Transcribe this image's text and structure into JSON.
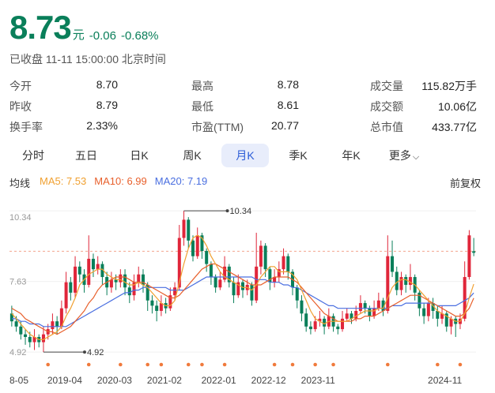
{
  "quote": {
    "price": "8.73",
    "unit": "元",
    "change": "-0.06",
    "change_pct": "-0.68%",
    "status": "已收盘 11-11 15:00:00 北京时间",
    "color": "#0a7f5a"
  },
  "stats": [
    [
      {
        "label": "今开",
        "value": "8.70"
      },
      {
        "label": "最高",
        "value": "8.78"
      },
      {
        "label": "成交量",
        "value": "115.82万手"
      }
    ],
    [
      {
        "label": "昨收",
        "value": "8.79"
      },
      {
        "label": "最低",
        "value": "8.61"
      },
      {
        "label": "成交额",
        "value": "10.06亿"
      }
    ],
    [
      {
        "label": "换手率",
        "value": "2.33%"
      },
      {
        "label": "市盈(TTM)",
        "value": "20.77"
      },
      {
        "label": "总市值",
        "value": "433.77亿"
      }
    ]
  ],
  "tabs": [
    "分时",
    "五日",
    "日K",
    "周K",
    "月K",
    "季K",
    "年K",
    "更多"
  ],
  "active_tab": "月K",
  "ma": {
    "label": "均线",
    "ma5": "MA5: 7.53",
    "ma10": "MA10: 6.99",
    "ma20": "MA20: 7.19",
    "ma5_color": "#f0a030",
    "ma10_color": "#e8602c",
    "ma20_color": "#4a6fe0",
    "adjust": "前复权"
  },
  "chart_data": {
    "type": "candlestick",
    "ylim": [
      4.5,
      10.8
    ],
    "y_ticks": [
      "10.34",
      "7.63",
      "4.92"
    ],
    "x_ticks": [
      "8-05",
      "2019-04",
      "2020-03",
      "2021-02",
      "2022-01",
      "2022-12",
      "2023-11",
      "2024-11"
    ],
    "max_label": "10.34",
    "min_label": "4.92",
    "ref_line": 8.79,
    "up_color": "#e0263a",
    "down_color": "#0a7f5a",
    "candles": [
      [
        6.4,
        6.1,
        6.7,
        5.9
      ],
      [
        6.1,
        5.9,
        6.3,
        5.7
      ],
      [
        5.9,
        5.6,
        6.1,
        5.4
      ],
      [
        5.6,
        5.5,
        5.8,
        5.2
      ],
      [
        5.5,
        5.3,
        5.7,
        5.1
      ],
      [
        5.3,
        5.5,
        5.8,
        5.0
      ],
      [
        5.5,
        5.3,
        5.6,
        5.1
      ],
      [
        5.3,
        5.6,
        5.9,
        4.92
      ],
      [
        5.6,
        5.8,
        6.0,
        5.4
      ],
      [
        5.8,
        6.1,
        6.4,
        5.6
      ],
      [
        6.1,
        5.9,
        6.3,
        5.6
      ],
      [
        5.9,
        6.6,
        6.9,
        5.8
      ],
      [
        6.6,
        7.6,
        8.0,
        6.4
      ],
      [
        7.6,
        7.2,
        7.8,
        6.9
      ],
      [
        7.2,
        8.2,
        8.6,
        7.0
      ],
      [
        8.2,
        7.9,
        8.4,
        7.6
      ],
      [
        7.9,
        7.5,
        8.1,
        7.2
      ],
      [
        7.5,
        8.5,
        9.4,
        7.4
      ],
      [
        8.5,
        8.1,
        8.7,
        7.8
      ],
      [
        8.1,
        8.3,
        8.6,
        7.9
      ],
      [
        8.3,
        7.8,
        8.4,
        7.5
      ],
      [
        7.8,
        7.4,
        8.0,
        7.1
      ],
      [
        7.4,
        7.7,
        8.0,
        7.2
      ],
      [
        7.7,
        7.6,
        7.9,
        7.3
      ],
      [
        7.6,
        7.9,
        8.1,
        7.4
      ],
      [
        7.9,
        7.4,
        8.1,
        7.1
      ],
      [
        7.4,
        7.1,
        7.6,
        6.8
      ],
      [
        7.1,
        7.6,
        7.9,
        6.9
      ],
      [
        7.6,
        7.9,
        8.2,
        7.4
      ],
      [
        7.9,
        7.5,
        8.1,
        7.2
      ],
      [
        7.5,
        6.9,
        7.6,
        6.5
      ],
      [
        6.9,
        6.7,
        7.1,
        6.4
      ],
      [
        6.7,
        6.5,
        6.9,
        6.1
      ],
      [
        6.5,
        6.8,
        7.1,
        6.3
      ],
      [
        6.8,
        6.6,
        7.0,
        6.4
      ],
      [
        6.6,
        7.1,
        7.4,
        6.5
      ],
      [
        7.1,
        7.4,
        7.6,
        6.9
      ],
      [
        7.4,
        9.3,
        9.8,
        7.3
      ],
      [
        9.3,
        10.0,
        10.34,
        9.0
      ],
      [
        10.0,
        9.2,
        10.1,
        8.9
      ],
      [
        9.2,
        8.6,
        9.4,
        8.4
      ],
      [
        8.6,
        9.4,
        9.7,
        8.5
      ],
      [
        9.4,
        8.8,
        9.5,
        8.5
      ],
      [
        8.8,
        8.3,
        8.9,
        8.0
      ],
      [
        8.3,
        7.8,
        8.4,
        7.5
      ],
      [
        7.8,
        7.4,
        7.9,
        7.2
      ],
      [
        7.4,
        7.7,
        8.0,
        7.3
      ],
      [
        7.7,
        8.2,
        8.6,
        7.6
      ],
      [
        8.2,
        7.6,
        8.3,
        7.4
      ],
      [
        7.6,
        7.1,
        7.8,
        6.8
      ],
      [
        7.1,
        7.6,
        7.9,
        7.0
      ],
      [
        7.6,
        7.3,
        7.7,
        7.0
      ],
      [
        7.3,
        7.5,
        7.7,
        7.1
      ],
      [
        7.5,
        6.9,
        7.6,
        6.7
      ],
      [
        6.9,
        8.2,
        9.5,
        6.8
      ],
      [
        8.2,
        9.0,
        9.2,
        7.9
      ],
      [
        9.0,
        8.1,
        9.1,
        7.8
      ],
      [
        8.1,
        7.6,
        8.2,
        7.3
      ],
      [
        7.6,
        7.8,
        8.1,
        7.4
      ],
      [
        7.8,
        8.1,
        8.4,
        7.6
      ],
      [
        8.1,
        8.6,
        8.9,
        7.9
      ],
      [
        8.6,
        8.0,
        8.7,
        7.7
      ],
      [
        8.0,
        7.4,
        8.1,
        7.1
      ],
      [
        7.4,
        6.9,
        7.5,
        6.6
      ],
      [
        6.9,
        6.4,
        7.1,
        6.1
      ],
      [
        6.4,
        5.9,
        6.6,
        5.7
      ],
      [
        5.9,
        5.8,
        6.1,
        5.6
      ],
      [
        5.8,
        6.1,
        6.3,
        5.7
      ],
      [
        6.1,
        6.2,
        6.5,
        5.9
      ],
      [
        6.2,
        5.9,
        6.3,
        5.6
      ],
      [
        5.9,
        6.3,
        6.6,
        5.8
      ],
      [
        6.3,
        5.9,
        6.4,
        5.7
      ],
      [
        5.9,
        5.8,
        6.0,
        5.6
      ],
      [
        5.8,
        6.2,
        6.5,
        5.7
      ],
      [
        6.2,
        6.4,
        6.6,
        6.1
      ],
      [
        6.4,
        6.2,
        6.5,
        6.0
      ],
      [
        6.2,
        6.5,
        6.7,
        6.1
      ],
      [
        6.5,
        6.8,
        7.1,
        6.4
      ],
      [
        6.8,
        6.6,
        6.9,
        6.4
      ],
      [
        6.6,
        6.3,
        6.7,
        6.1
      ],
      [
        6.3,
        6.6,
        6.9,
        6.2
      ],
      [
        6.6,
        6.9,
        7.2,
        6.5
      ],
      [
        6.9,
        6.5,
        7.0,
        6.3
      ],
      [
        6.5,
        8.6,
        9.4,
        6.4
      ],
      [
        8.6,
        8.0,
        9.2,
        7.8
      ],
      [
        8.0,
        7.3,
        8.2,
        7.1
      ],
      [
        7.3,
        7.8,
        8.0,
        7.1
      ],
      [
        7.8,
        7.5,
        7.9,
        7.2
      ],
      [
        7.5,
        7.8,
        8.3,
        7.3
      ],
      [
        7.8,
        7.2,
        7.9,
        6.9
      ],
      [
        7.2,
        6.6,
        7.3,
        6.3
      ],
      [
        6.6,
        6.3,
        6.8,
        6.0
      ],
      [
        6.3,
        6.8,
        7.0,
        6.1
      ],
      [
        6.8,
        6.5,
        7.0,
        6.2
      ],
      [
        6.5,
        6.2,
        6.7,
        5.9
      ],
      [
        6.2,
        6.4,
        6.7,
        6.0
      ],
      [
        6.4,
        5.9,
        6.5,
        5.7
      ],
      [
        5.9,
        6.2,
        6.3,
        5.6
      ],
      [
        6.2,
        6.0,
        6.3,
        5.5
      ],
      [
        6.0,
        6.2,
        6.4,
        5.8
      ],
      [
        6.2,
        7.8,
        8.4,
        6.1
      ],
      [
        7.8,
        9.4,
        9.6,
        7.7
      ],
      [
        8.79,
        8.73,
        9.3,
        8.6
      ]
    ],
    "ma5": [
      6.4,
      6.2,
      6.0,
      5.8,
      5.6,
      5.5,
      5.4,
      5.4,
      5.5,
      5.6,
      5.7,
      5.9,
      6.3,
      6.6,
      7.0,
      7.5,
      7.7,
      7.9,
      8.0,
      8.1,
      8.1,
      7.9,
      7.8,
      7.7,
      7.7,
      7.6,
      7.5,
      7.5,
      7.6,
      7.5,
      7.4,
      7.2,
      7.0,
      6.8,
      6.7,
      6.7,
      6.9,
      7.6,
      8.3,
      8.9,
      9.3,
      9.4,
      9.3,
      9.0,
      8.6,
      8.3,
      8.0,
      7.8,
      7.7,
      7.6,
      7.5,
      7.4,
      7.4,
      7.3,
      7.5,
      7.8,
      8.0,
      8.2,
      8.2,
      8.0,
      8.0,
      8.0,
      7.9,
      7.7,
      7.3,
      6.9,
      6.5,
      6.2,
      6.1,
      6.0,
      6.1,
      6.1,
      6.1,
      6.1,
      6.1,
      6.2,
      6.3,
      6.4,
      6.5,
      6.5,
      6.5,
      6.6,
      6.6,
      7.0,
      7.4,
      7.6,
      7.7,
      7.7,
      7.6,
      7.5,
      7.3,
      7.1,
      6.9,
      6.7,
      6.5,
      6.4,
      6.3,
      6.2,
      6.1,
      6.1,
      6.4,
      7.0,
      7.53
    ],
    "ma10": [
      6.6,
      6.5,
      6.4,
      6.2,
      6.1,
      6.0,
      5.9,
      5.8,
      5.7,
      5.7,
      5.6,
      5.7,
      5.8,
      5.9,
      6.1,
      6.3,
      6.5,
      6.8,
      7.0,
      7.3,
      7.5,
      7.6,
      7.7,
      7.8,
      7.8,
      7.8,
      7.7,
      7.6,
      7.6,
      7.6,
      7.5,
      7.4,
      7.3,
      7.2,
      7.1,
      7.0,
      7.0,
      7.1,
      7.3,
      7.5,
      7.7,
      7.9,
      8.1,
      8.2,
      8.3,
      8.3,
      8.2,
      8.1,
      8.0,
      7.9,
      7.8,
      7.7,
      7.6,
      7.5,
      7.5,
      7.5,
      7.6,
      7.7,
      7.8,
      7.8,
      7.8,
      7.8,
      7.7,
      7.6,
      7.4,
      7.2,
      7.0,
      6.8,
      6.6,
      6.4,
      6.3,
      6.2,
      6.1,
      6.1,
      6.1,
      6.1,
      6.2,
      6.2,
      6.3,
      6.3,
      6.3,
      6.4,
      6.5,
      6.6,
      6.7,
      6.8,
      6.9,
      7.0,
      7.1,
      7.1,
      7.1,
      7.0,
      6.9,
      6.8,
      6.7,
      6.6,
      6.5,
      6.4,
      6.3,
      6.3,
      6.4,
      6.6,
      6.99
    ],
    "ma20": [
      6.2,
      6.2,
      6.1,
      6.1,
      6.0,
      6.0,
      6.0,
      5.9,
      5.9,
      5.9,
      5.9,
      5.9,
      5.9,
      6.0,
      6.1,
      6.2,
      6.3,
      6.4,
      6.5,
      6.6,
      6.7,
      6.8,
      6.9,
      7.0,
      7.1,
      7.2,
      7.2,
      7.3,
      7.3,
      7.4,
      7.4,
      7.4,
      7.4,
      7.4,
      7.4,
      7.3,
      7.3,
      7.3,
      7.3,
      7.4,
      7.5,
      7.6,
      7.7,
      7.8,
      7.8,
      7.8,
      7.8,
      7.8,
      7.8,
      7.8,
      7.8,
      7.8,
      7.8,
      7.8,
      7.7,
      7.7,
      7.7,
      7.6,
      7.6,
      7.6,
      7.5,
      7.5,
      7.4,
      7.4,
      7.3,
      7.2,
      7.1,
      7.0,
      6.9,
      6.8,
      6.7,
      6.7,
      6.6,
      6.6,
      6.6,
      6.6,
      6.6,
      6.6,
      6.6,
      6.6,
      6.6,
      6.6,
      6.6,
      6.6,
      6.7,
      6.7,
      6.7,
      6.8,
      6.8,
      6.8,
      6.8,
      6.8,
      6.8,
      6.8,
      6.7,
      6.7,
      6.7,
      6.7,
      6.7,
      6.8,
      6.9,
      7.0,
      7.19
    ]
  }
}
